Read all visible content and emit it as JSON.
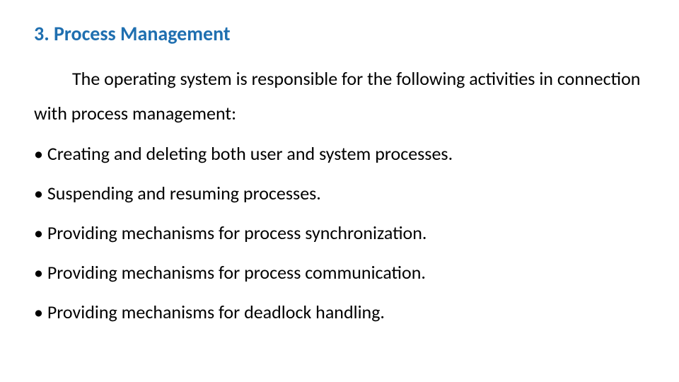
{
  "colors": {
    "heading": "#1f6fb0",
    "body": "#000000",
    "background": "#ffffff"
  },
  "typography": {
    "heading_fontsize": 28,
    "heading_weight": 700,
    "body_fontsize": 26,
    "line_height": 1.9
  },
  "heading": "3. Process Management",
  "intro": "The operating system is responsible for the following activities in connection with process management:",
  "bullets": [
    "• Creating and deleting both user and system processes.",
    "• Suspending and resuming processes.",
    "• Providing mechanisms for process synchronization.",
    "• Providing mechanisms for process communication.",
    "• Providing mechanisms for deadlock handling."
  ]
}
